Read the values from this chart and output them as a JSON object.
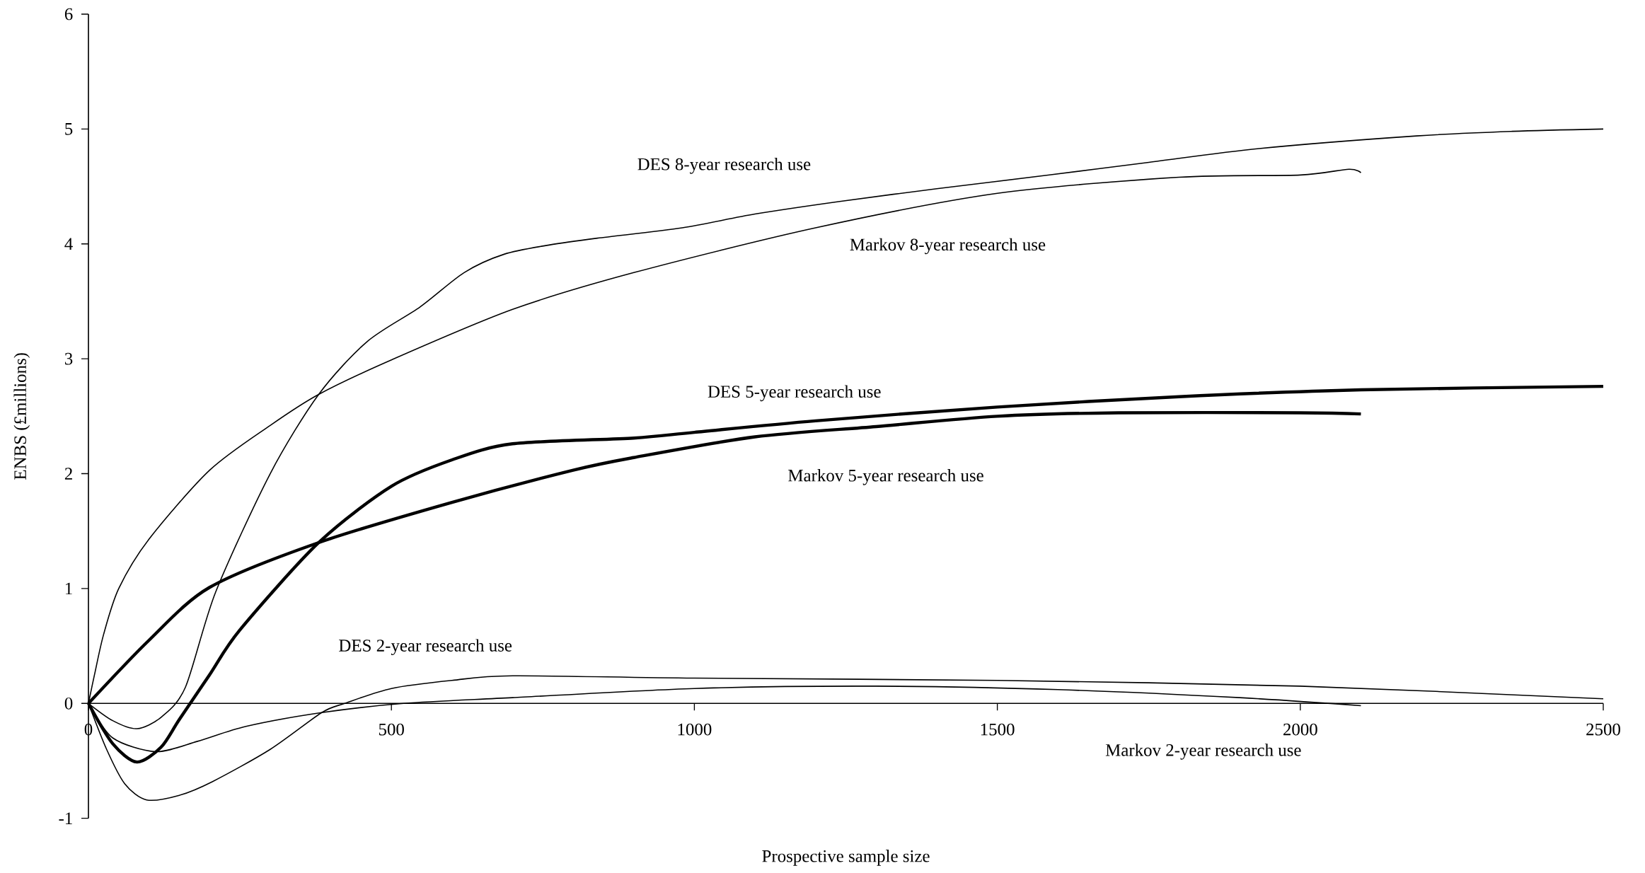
{
  "chart_data": {
    "type": "line",
    "xlabel": "Prospective sample size",
    "ylabel": "ENBS (£millions)",
    "xlim": [
      0,
      2500
    ],
    "ylim": [
      -1,
      6
    ],
    "xticks": [
      0,
      500,
      1000,
      1500,
      2000,
      2500
    ],
    "yticks": [
      -1,
      0,
      1,
      2,
      3,
      4,
      5,
      6
    ],
    "grid": false,
    "legend": false,
    "marker": "none",
    "line_style": "solid",
    "series": [
      {
        "name": "DES 8-year research use",
        "color": "#000000",
        "x": [
          0,
          40,
          80,
          120,
          160,
          210,
          300,
          380,
          460,
          547,
          620,
          686,
          760,
          840,
          980,
          1100,
          1240,
          1400,
          1586,
          1750,
          1932,
          2192,
          2350,
          2500
        ],
        "values": [
          0,
          -0.15,
          -0.22,
          -0.12,
          0.14,
          0.97,
          2.0,
          2.69,
          3.15,
          3.45,
          3.75,
          3.91,
          3.99,
          4.05,
          4.14,
          4.26,
          4.37,
          4.48,
          4.6,
          4.71,
          4.83,
          4.94,
          4.98,
          5.0
        ]
      },
      {
        "name": "Markov 8-year research use",
        "color": "#000000",
        "x": [
          0,
          10,
          25,
          50,
          100,
          200,
          300,
          380,
          500,
          700,
          900,
          1200,
          1500,
          1800,
          2000,
          2080,
          2100
        ],
        "values": [
          0,
          0.25,
          0.6,
          1.0,
          1.43,
          2.03,
          2.42,
          2.69,
          2.99,
          3.43,
          3.75,
          4.14,
          4.44,
          4.58,
          4.6,
          4.65,
          4.62
        ]
      },
      {
        "name": "DES 5-year research use",
        "color": "#000000",
        "x": [
          0,
          40,
          80,
          120,
          150,
          200,
          250,
          380,
          500,
          600,
          700,
          900,
          1000,
          1200,
          1500,
          1800,
          2100,
          2500
        ],
        "values": [
          0,
          -0.35,
          -0.51,
          -0.38,
          -0.14,
          0.25,
          0.64,
          1.4,
          1.89,
          2.12,
          2.26,
          2.31,
          2.36,
          2.46,
          2.58,
          2.67,
          2.73,
          2.76
        ]
      },
      {
        "name": "Markov 5-year research use",
        "color": "#000000",
        "x": [
          0,
          100,
          200,
          380,
          600,
          800,
          900,
          1100,
          1300,
          1500,
          1700,
          2000,
          2100
        ],
        "values": [
          0,
          0.55,
          1.01,
          1.4,
          1.75,
          2.03,
          2.14,
          2.32,
          2.41,
          2.5,
          2.53,
          2.53,
          2.52
        ]
      },
      {
        "name": "DES 2-year research use",
        "color": "#000000",
        "x": [
          0,
          30,
          60,
          96,
          150,
          205,
          300,
          385,
          423,
          500,
          600,
          700,
          1000,
          1500,
          2000,
          2500
        ],
        "values": [
          0,
          -0.4,
          -0.7,
          -0.84,
          -0.8,
          -0.68,
          -0.4,
          -0.08,
          0,
          0.13,
          0.2,
          0.24,
          0.22,
          0.2,
          0.15,
          0.04
        ]
      },
      {
        "name": "Markov 2-year research use",
        "color": "#000000",
        "x": [
          0,
          40,
          111,
          180,
          260,
          385,
          520,
          700,
          1000,
          1300,
          1600,
          1900,
          2100
        ],
        "values": [
          0,
          -0.3,
          -0.42,
          -0.33,
          -0.2,
          -0.08,
          0,
          0.05,
          0.13,
          0.15,
          0.12,
          0.05,
          -0.02
        ]
      }
    ]
  }
}
